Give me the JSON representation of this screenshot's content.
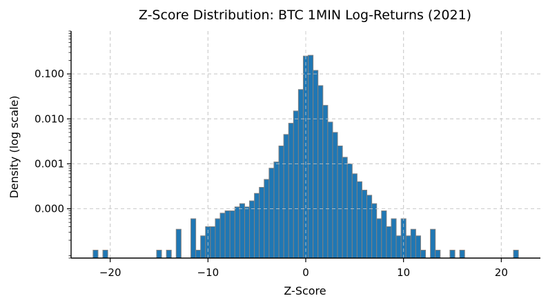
{
  "chart_data": {
    "type": "bar",
    "title": "Z-Score Distribution: BTC 1MIN Log-Returns (2021)",
    "xlabel": "Z-Score",
    "ylabel": "Density (log scale)",
    "y_scale": "log",
    "x_ticks": [
      -20,
      -10,
      0,
      10,
      20
    ],
    "x_tick_labels": [
      "−20",
      "−10",
      "0",
      "10",
      "20"
    ],
    "y_ticks": [
      0.1,
      0.01,
      0.001,
      0.0001
    ],
    "y_tick_labels": [
      "0.100",
      "0.010",
      "0.001",
      "0.000"
    ],
    "xlim": [
      -24,
      24
    ],
    "ylim": [
      8e-06,
      0.9
    ],
    "grid": true,
    "bin_width": 0.5,
    "bins": [
      {
        "x": -21.5,
        "y": 1.2e-05
      },
      {
        "x": -20.5,
        "y": 1.2e-05
      },
      {
        "x": -15,
        "y": 1.2e-05
      },
      {
        "x": -14,
        "y": 1.2e-05
      },
      {
        "x": -13,
        "y": 3.5e-05
      },
      {
        "x": -11.5,
        "y": 6e-05
      },
      {
        "x": -11,
        "y": 1.2e-05
      },
      {
        "x": -10.5,
        "y": 2.5e-05
      },
      {
        "x": -10,
        "y": 4e-05
      },
      {
        "x": -9.5,
        "y": 4e-05
      },
      {
        "x": -9,
        "y": 6e-05
      },
      {
        "x": -8.5,
        "y": 8e-05
      },
      {
        "x": -8,
        "y": 9e-05
      },
      {
        "x": -7.5,
        "y": 9e-05
      },
      {
        "x": -7,
        "y": 0.00011
      },
      {
        "x": -6.5,
        "y": 0.00013
      },
      {
        "x": -6,
        "y": 0.00011
      },
      {
        "x": -5.5,
        "y": 0.00015
      },
      {
        "x": -5,
        "y": 0.00022
      },
      {
        "x": -4.5,
        "y": 0.0003
      },
      {
        "x": -4,
        "y": 0.00045
      },
      {
        "x": -3.5,
        "y": 0.0008
      },
      {
        "x": -3,
        "y": 0.0011
      },
      {
        "x": -2.5,
        "y": 0.0025
      },
      {
        "x": -2,
        "y": 0.0045
      },
      {
        "x": -1.5,
        "y": 0.008
      },
      {
        "x": -1,
        "y": 0.015
      },
      {
        "x": -0.5,
        "y": 0.045
      },
      {
        "x": 0,
        "y": 0.25
      },
      {
        "x": 0.5,
        "y": 0.26
      },
      {
        "x": 1,
        "y": 0.12
      },
      {
        "x": 1.5,
        "y": 0.055
      },
      {
        "x": 2,
        "y": 0.02
      },
      {
        "x": 2.5,
        "y": 0.0085
      },
      {
        "x": 3,
        "y": 0.005
      },
      {
        "x": 3.5,
        "y": 0.0025
      },
      {
        "x": 4,
        "y": 0.0014
      },
      {
        "x": 4.5,
        "y": 0.001
      },
      {
        "x": 5,
        "y": 0.0006
      },
      {
        "x": 5.5,
        "y": 0.0004
      },
      {
        "x": 6,
        "y": 0.00026
      },
      {
        "x": 6.5,
        "y": 0.0002
      },
      {
        "x": 7,
        "y": 0.00013
      },
      {
        "x": 7.5,
        "y": 6e-05
      },
      {
        "x": 8,
        "y": 9e-05
      },
      {
        "x": 8.5,
        "y": 4e-05
      },
      {
        "x": 9,
        "y": 6e-05
      },
      {
        "x": 9.5,
        "y": 2.5e-05
      },
      {
        "x": 10,
        "y": 6e-05
      },
      {
        "x": 10.5,
        "y": 2.5e-05
      },
      {
        "x": 11,
        "y": 3.5e-05
      },
      {
        "x": 11.5,
        "y": 2.5e-05
      },
      {
        "x": 12,
        "y": 1.2e-05
      },
      {
        "x": 13,
        "y": 3.5e-05
      },
      {
        "x": 13.5,
        "y": 1.2e-05
      },
      {
        "x": 15,
        "y": 1.2e-05
      },
      {
        "x": 16,
        "y": 1.2e-05
      },
      {
        "x": 21.5,
        "y": 1.2e-05
      }
    ],
    "colors": {
      "bar_fill": "#1f77b4",
      "bar_edge": "#808080",
      "grid": "#cccccc"
    }
  }
}
